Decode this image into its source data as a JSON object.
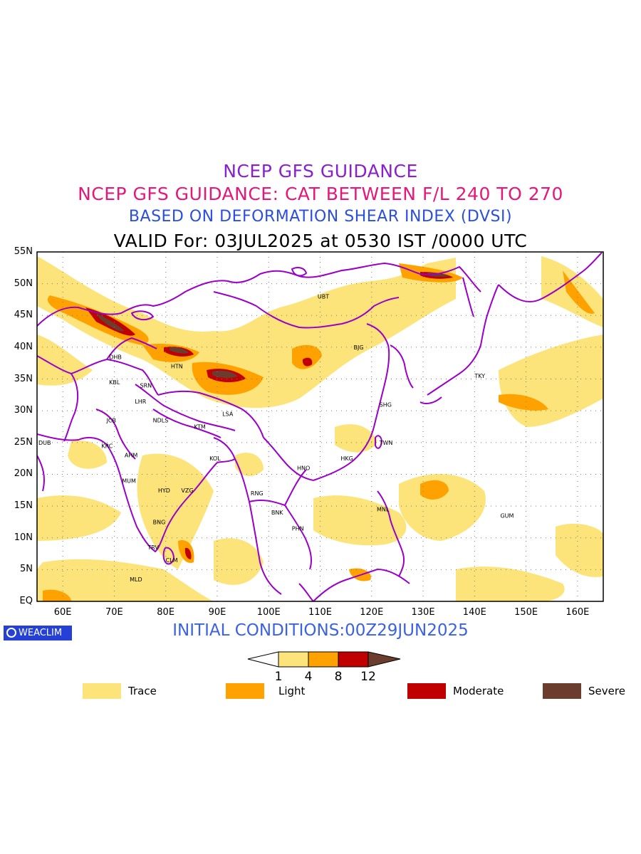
{
  "titles": {
    "line1": "NCEP GFS GUIDANCE",
    "line2": "NCEP GFS GUIDANCE: CAT BETWEEN F/L 240 TO 270",
    "line3": "BASED ON DEFORMATION SHEAR INDEX (DVSI)",
    "line4": "VALID For: 03JUL2025 at 0530 IST /0000 UTC"
  },
  "axes": {
    "lat_labels": [
      "55N",
      "50N",
      "45N",
      "40N",
      "35N",
      "30N",
      "25N",
      "20N",
      "15N",
      "10N",
      "5N",
      "EQ"
    ],
    "lon_labels": [
      "60E",
      "70E",
      "80E",
      "90E",
      "100E",
      "110E",
      "120E",
      "130E",
      "140E",
      "150E",
      "160E"
    ],
    "lat_range": [
      0,
      55
    ],
    "lon_range": [
      55,
      165
    ],
    "grid": "dotted"
  },
  "cities": [
    {
      "code": "UBT",
      "lon": 109.5,
      "lat": 48.0
    },
    {
      "code": "DHB",
      "lon": 69.0,
      "lat": 38.5
    },
    {
      "code": "HTN",
      "lon": 81.0,
      "lat": 37.0
    },
    {
      "code": "BJG",
      "lon": 116.5,
      "lat": 40.0
    },
    {
      "code": "TKY",
      "lon": 140.0,
      "lat": 35.5
    },
    {
      "code": "KBL",
      "lon": 69.0,
      "lat": 34.5
    },
    {
      "code": "SRN",
      "lon": 75.0,
      "lat": 34.0
    },
    {
      "code": "LHR",
      "lon": 74.0,
      "lat": 31.5
    },
    {
      "code": "SHG",
      "lon": 121.5,
      "lat": 31.0
    },
    {
      "code": "LSA",
      "lon": 91.0,
      "lat": 29.5
    },
    {
      "code": "JCB",
      "lon": 68.5,
      "lat": 28.5
    },
    {
      "code": "NDLS",
      "lon": 77.5,
      "lat": 28.5
    },
    {
      "code": "KTM",
      "lon": 85.5,
      "lat": 27.5
    },
    {
      "code": "DUB",
      "lon": 55.0,
      "lat": 25.0
    },
    {
      "code": "KRC",
      "lon": 67.5,
      "lat": 24.5
    },
    {
      "code": "TWN",
      "lon": 121.5,
      "lat": 25.0
    },
    {
      "code": "AHM",
      "lon": 72.0,
      "lat": 23.0
    },
    {
      "code": "KOL",
      "lon": 88.5,
      "lat": 22.5
    },
    {
      "code": "HKG",
      "lon": 114.0,
      "lat": 22.5
    },
    {
      "code": "HNO",
      "lon": 105.5,
      "lat": 21.0
    },
    {
      "code": "MUM",
      "lon": 71.5,
      "lat": 19.0
    },
    {
      "code": "HYD",
      "lon": 78.5,
      "lat": 17.5
    },
    {
      "code": "VZG",
      "lon": 83.0,
      "lat": 17.5
    },
    {
      "code": "RNG",
      "lon": 96.5,
      "lat": 17.0
    },
    {
      "code": "MNL",
      "lon": 121.0,
      "lat": 14.5
    },
    {
      "code": "BNK",
      "lon": 100.5,
      "lat": 14.0
    },
    {
      "code": "GUM",
      "lon": 145.0,
      "lat": 13.5
    },
    {
      "code": "PHN",
      "lon": 104.5,
      "lat": 11.5
    },
    {
      "code": "BNG",
      "lon": 77.5,
      "lat": 12.5
    },
    {
      "code": "TRV",
      "lon": 76.5,
      "lat": 8.5
    },
    {
      "code": "CLM",
      "lon": 80.0,
      "lat": 6.5
    },
    {
      "code": "MLD",
      "lon": 73.0,
      "lat": 3.5
    }
  ],
  "footer": {
    "logo": "WEACLIM",
    "initial_conditions": "INITIAL CONDITIONS:00Z29JUN2025"
  },
  "colorbar": {
    "boundaries": [
      "1",
      "4",
      "8",
      "12"
    ],
    "colors": [
      "#ffffff",
      "#fde47a",
      "#ffa200",
      "#c00000",
      "#6b3d2e"
    ]
  },
  "legend": [
    {
      "label": "Trace",
      "color": "#fde47a"
    },
    {
      "label": "Light",
      "color": "#ffa200"
    },
    {
      "label": "Moderate",
      "color": "#c00000"
    },
    {
      "label": "Severe",
      "color": "#6b3d2e"
    }
  ],
  "colors": {
    "boundary": "#9b00c8",
    "title1": "#8a1fd0",
    "title2": "#e5177a",
    "title3": "#2a4ee0"
  }
}
